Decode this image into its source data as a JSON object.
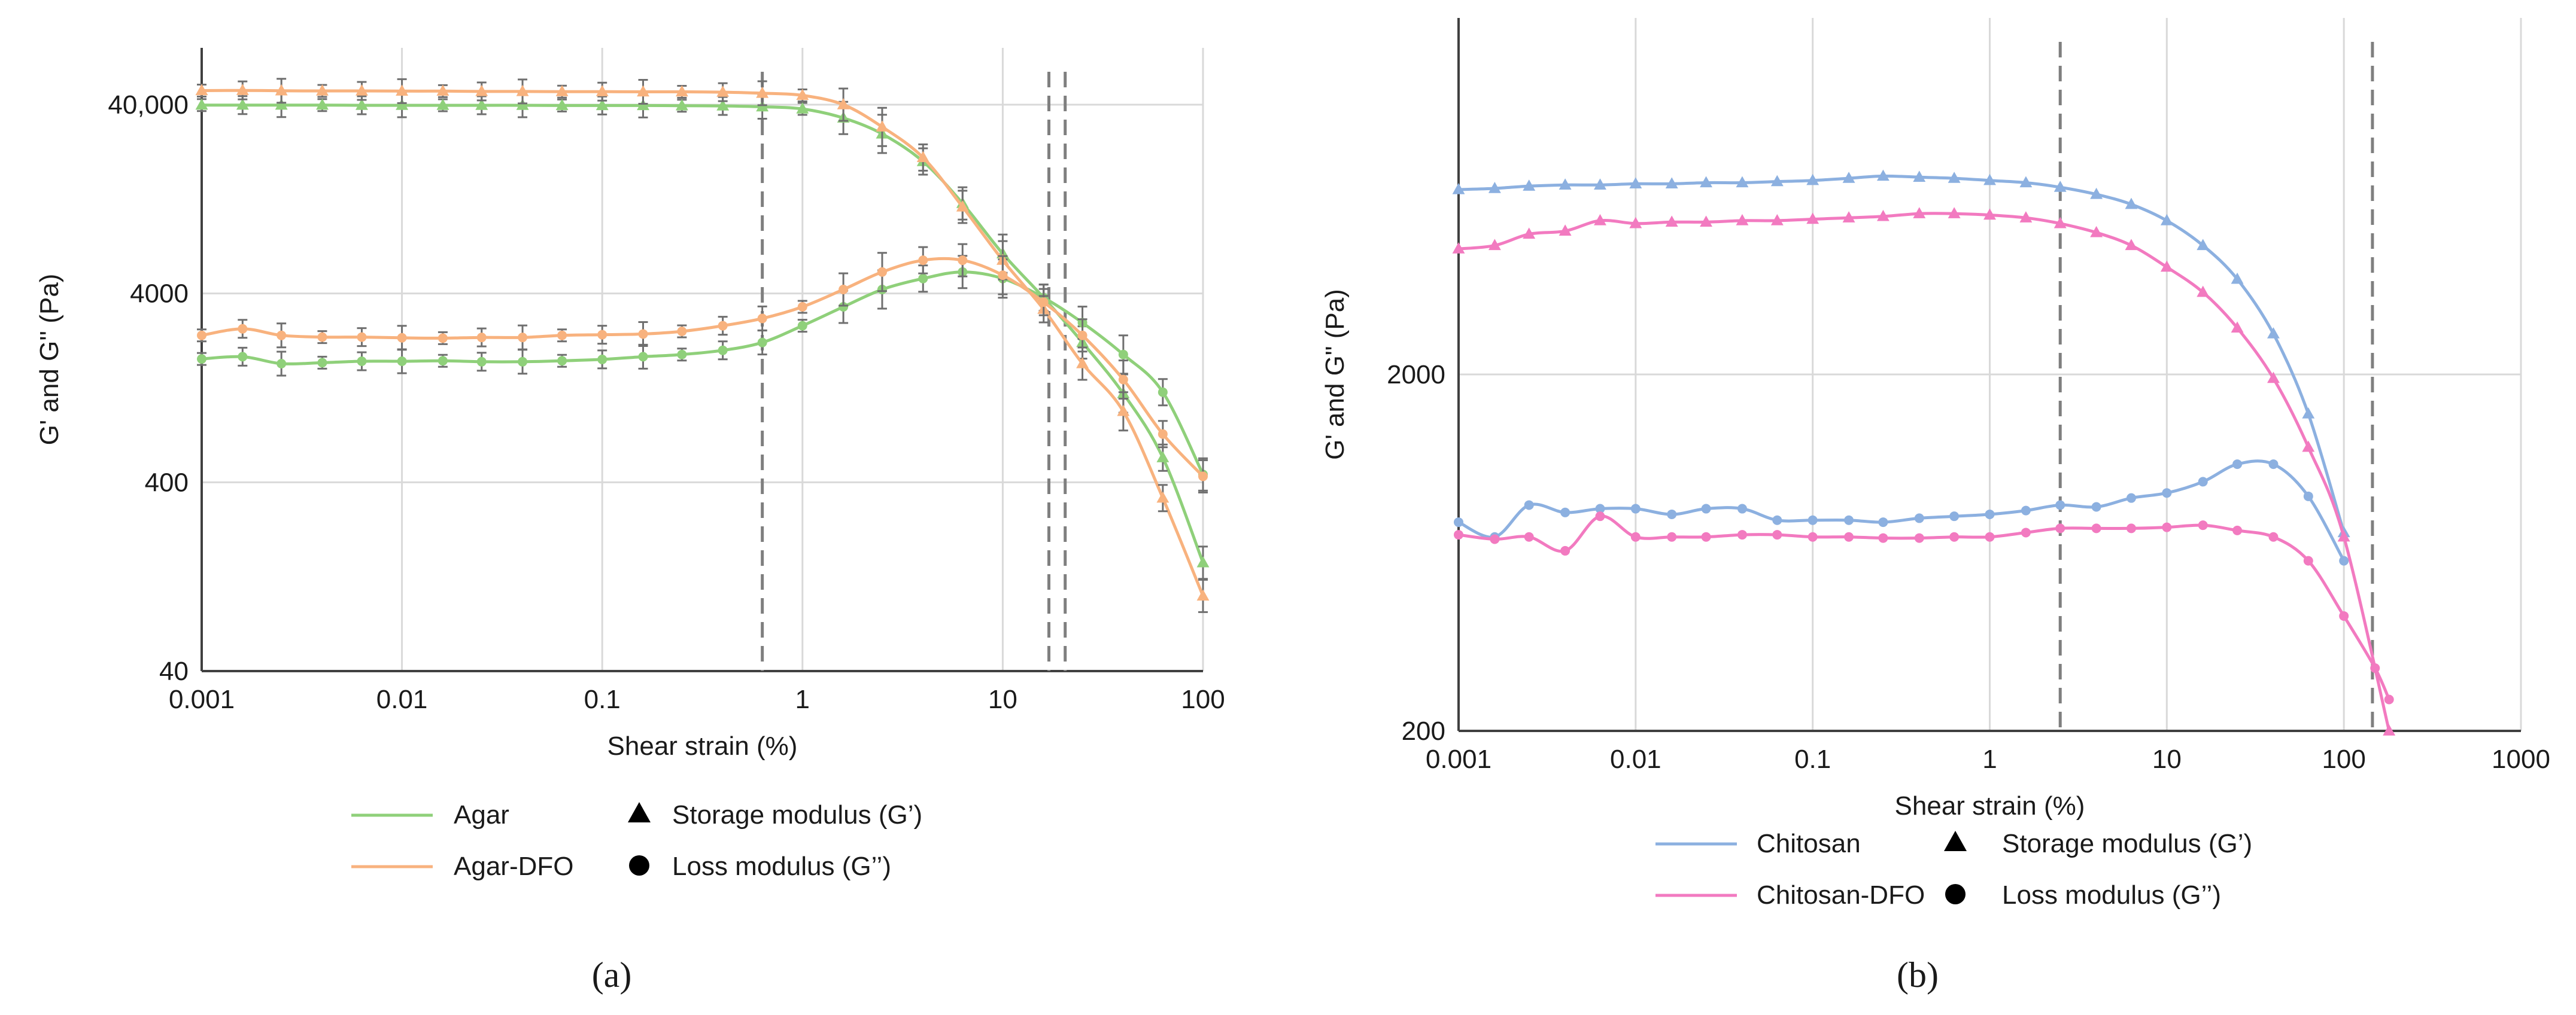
{
  "chart_data": [
    {
      "type": "line",
      "panel_label": "(a)",
      "xlabel": "Shear strain (%)",
      "ylabel": "G' and G'' (Pa)",
      "xscale": "log",
      "yscale": "log",
      "xlim": [
        0.001,
        100
      ],
      "ylim": [
        40,
        80000
      ],
      "grid": true,
      "x_ticks": [
        {
          "v": 0.001,
          "label": "0.001"
        },
        {
          "v": 0.01,
          "label": "0.01"
        },
        {
          "v": 0.1,
          "label": "0.1"
        },
        {
          "v": 1,
          "label": "1"
        },
        {
          "v": 10,
          "label": "10"
        },
        {
          "v": 100,
          "label": "100"
        }
      ],
      "y_ticks": [
        {
          "v": 40,
          "label": "40"
        },
        {
          "v": 400,
          "label": "400"
        },
        {
          "v": 4000,
          "label": "4000"
        },
        {
          "v": 40000,
          "label": "40,000"
        }
      ],
      "x": [
        0.001,
        0.0016,
        0.0025,
        0.004,
        0.0063,
        0.01,
        0.016,
        0.025,
        0.04,
        0.063,
        0.1,
        0.16,
        0.25,
        0.4,
        0.63,
        1,
        1.6,
        2.5,
        4,
        6.3,
        10,
        16,
        25,
        40,
        63,
        100
      ],
      "series": [
        {
          "name": "Agar G'",
          "material": "Agar",
          "modulus": "storage",
          "color": "#8fd07a",
          "marker": "triangle",
          "error_bars": true,
          "values": [
            39800,
            39800,
            39800,
            39800,
            39700,
            39700,
            39700,
            39700,
            39700,
            39600,
            39600,
            39600,
            39500,
            39400,
            39000,
            38000,
            34000,
            28000,
            20000,
            12000,
            6500,
            3800,
            2200,
            1180,
            540,
            150
          ]
        },
        {
          "name": "Agar G''",
          "material": "Agar",
          "modulus": "loss",
          "color": "#8fd07a",
          "marker": "circle",
          "error_bars": true,
          "values": [
            1800,
            1850,
            1700,
            1720,
            1750,
            1750,
            1760,
            1740,
            1740,
            1760,
            1790,
            1850,
            1900,
            2000,
            2200,
            2700,
            3400,
            4200,
            4800,
            5200,
            4800,
            3800,
            2800,
            1900,
            1200,
            440
          ]
        },
        {
          "name": "Agar-DFO G'",
          "material": "Agar-DFO",
          "modulus": "storage",
          "color": "#f8b27e",
          "marker": "triangle",
          "error_bars": true,
          "values": [
            47500,
            47600,
            47400,
            47300,
            47300,
            47200,
            47200,
            47000,
            47000,
            46900,
            46900,
            46800,
            46800,
            46600,
            46000,
            44800,
            40000,
            30500,
            21000,
            11500,
            6000,
            3300,
            1700,
            950,
            330,
            100
          ]
        },
        {
          "name": "Agar-DFO G''",
          "material": "Agar-DFO",
          "modulus": "loss",
          "color": "#f8b27e",
          "marker": "circle",
          "error_bars": true,
          "values": [
            2400,
            2600,
            2400,
            2350,
            2350,
            2330,
            2320,
            2340,
            2340,
            2400,
            2420,
            2440,
            2520,
            2700,
            2950,
            3400,
            4200,
            5200,
            6000,
            6000,
            5000,
            3600,
            2400,
            1400,
            720,
            430
          ]
        }
      ],
      "reference_lines_x": [
        0.63,
        17,
        20.5
      ],
      "legend": {
        "entries": [
          {
            "kind": "line",
            "color": "#8fd07a",
            "label": "Agar"
          },
          {
            "kind": "line",
            "color": "#f8b27e",
            "label": "Agar-DFO"
          },
          {
            "kind": "triangle",
            "label": "Storage modulus (G’)"
          },
          {
            "kind": "circle",
            "label": "Loss modulus (G’’)"
          }
        ],
        "placement": "bottom"
      }
    },
    {
      "type": "line",
      "panel_label": "(b)",
      "xlabel": "Shear strain (%)",
      "ylabel": "G' and G\" (Pa)",
      "xscale": "log",
      "yscale": "log",
      "xlim": [
        0.001,
        1000
      ],
      "ylim": [
        200,
        20000
      ],
      "grid": true,
      "x_ticks": [
        {
          "v": 0.001,
          "label": "0.001"
        },
        {
          "v": 0.01,
          "label": "0.01"
        },
        {
          "v": 0.1,
          "label": "0.1"
        },
        {
          "v": 1,
          "label": "1"
        },
        {
          "v": 10,
          "label": "10"
        },
        {
          "v": 100,
          "label": "100"
        },
        {
          "v": 1000,
          "label": "1000"
        }
      ],
      "y_ticks": [
        {
          "v": 200,
          "label": "200"
        },
        {
          "v": 2000,
          "label": "2000"
        }
      ],
      "series": [
        {
          "name": "Chitosan G'",
          "material": "Chitosan",
          "modulus": "storage",
          "color": "#8cb0e0",
          "marker": "triangle",
          "x": [
            0.001,
            0.0016,
            0.0025,
            0.004,
            0.0063,
            0.01,
            0.016,
            0.025,
            0.04,
            0.063,
            0.1,
            0.16,
            0.25,
            0.4,
            0.63,
            1,
            1.6,
            2.5,
            4,
            6.3,
            10,
            16,
            25,
            40,
            63,
            100
          ],
          "values": [
            6600,
            6650,
            6750,
            6800,
            6800,
            6850,
            6850,
            6900,
            6900,
            6950,
            7000,
            7100,
            7200,
            7150,
            7100,
            7000,
            6900,
            6700,
            6400,
            6000,
            5400,
            4600,
            3700,
            2600,
            1550,
            720
          ]
        },
        {
          "name": "Chitosan G''",
          "material": "Chitosan",
          "modulus": "loss",
          "color": "#8cb0e0",
          "marker": "circle",
          "x": [
            0.001,
            0.0016,
            0.0025,
            0.004,
            0.0063,
            0.01,
            0.016,
            0.025,
            0.04,
            0.063,
            0.1,
            0.16,
            0.25,
            0.4,
            0.63,
            1,
            1.6,
            2.5,
            4,
            6.3,
            10,
            16,
            25,
            40,
            63,
            100
          ],
          "values": [
            770,
            700,
            860,
            820,
            840,
            840,
            810,
            840,
            840,
            780,
            780,
            780,
            770,
            790,
            800,
            810,
            830,
            860,
            850,
            900,
            930,
            1000,
            1120,
            1120,
            910,
            600
          ]
        },
        {
          "name": "Chitosan-DFO G'",
          "material": "Chitosan-DFO",
          "modulus": "storage",
          "color": "#f27ac0",
          "marker": "triangle",
          "x": [
            0.001,
            0.0016,
            0.0025,
            0.004,
            0.0063,
            0.01,
            0.016,
            0.025,
            0.04,
            0.063,
            0.1,
            0.16,
            0.25,
            0.4,
            0.63,
            1,
            1.6,
            2.5,
            4,
            6.3,
            10,
            16,
            25,
            40,
            63,
            100,
            180
          ],
          "values": [
            4500,
            4600,
            4950,
            5050,
            5400,
            5300,
            5350,
            5350,
            5400,
            5400,
            5450,
            5500,
            5550,
            5650,
            5650,
            5600,
            5500,
            5300,
            5000,
            4600,
            4000,
            3400,
            2700,
            1950,
            1250,
            700,
            200
          ]
        },
        {
          "name": "Chitosan-DFO G''",
          "material": "Chitosan-DFO",
          "modulus": "loss",
          "color": "#f27ac0",
          "marker": "circle",
          "x": [
            0.001,
            0.0016,
            0.0025,
            0.004,
            0.0063,
            0.01,
            0.016,
            0.025,
            0.04,
            0.063,
            0.1,
            0.16,
            0.25,
            0.4,
            0.63,
            1,
            1.6,
            2.5,
            4,
            6.3,
            10,
            16,
            25,
            40,
            63,
            100,
            150,
            180
          ],
          "values": [
            710,
            690,
            700,
            640,
            800,
            700,
            700,
            700,
            710,
            710,
            700,
            700,
            695,
            695,
            700,
            700,
            720,
            740,
            740,
            740,
            745,
            755,
            730,
            700,
            600,
            420,
            300,
            245
          ]
        }
      ],
      "reference_lines_x": [
        2.5,
        145
      ],
      "legend": {
        "entries": [
          {
            "kind": "line",
            "color": "#8cb0e0",
            "label": "Chitosan"
          },
          {
            "kind": "line",
            "color": "#f27ac0",
            "label": "Chitosan-DFO"
          },
          {
            "kind": "triangle",
            "label": "Storage modulus (G’)"
          },
          {
            "kind": "circle",
            "label": "Loss modulus (G’’)"
          }
        ],
        "placement": "bottom"
      }
    }
  ]
}
